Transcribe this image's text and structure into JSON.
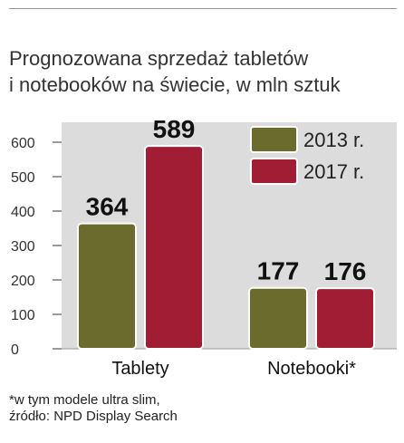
{
  "title_line1": "Prognozowana sprzedaż tabletów",
  "title_line2": "i notebooków na świecie, w mln sztuk",
  "footnote_line1": "*w tym modele ultra slim,",
  "footnote_line2": "źródło: NPD Display Search",
  "chart_data": {
    "type": "bar",
    "categories": [
      "Tablety",
      "Notebooki*"
    ],
    "series": [
      {
        "name": "2013 r.",
        "values": [
          364,
          177
        ],
        "color": "#6b6b2d"
      },
      {
        "name": "2017 r.",
        "values": [
          589,
          176
        ],
        "color": "#a01d34"
      }
    ],
    "ylim": [
      0,
      600
    ],
    "yticks": [
      0,
      100,
      200,
      300,
      400,
      500,
      600
    ],
    "grid": false,
    "legend": "top-right",
    "background": "#dcdcdc"
  }
}
